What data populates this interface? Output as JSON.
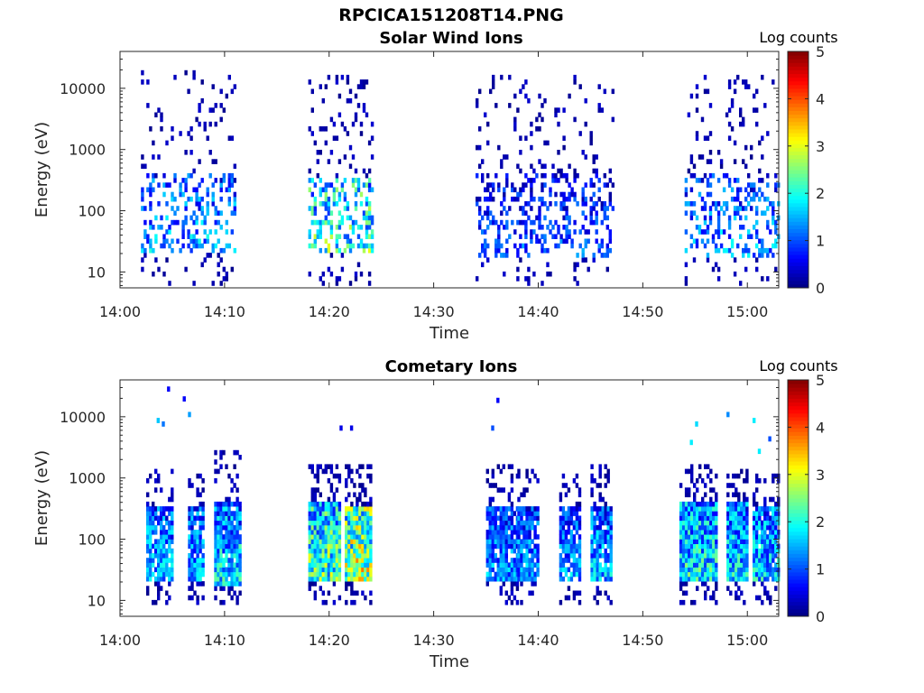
{
  "figure": {
    "title": "RPCICA151208T14.PNG"
  },
  "colors": {
    "colormap": "jet",
    "background": "#ffffff",
    "axis": "#262626"
  },
  "chart_data": [
    {
      "type": "heatmap",
      "title": "Solar Wind Ions",
      "xlabel": "Time",
      "ylabel": "Energy (eV)",
      "xlim": [
        "14:00",
        "15:03"
      ],
      "ylim": [
        5.5,
        40000
      ],
      "yscale": "log",
      "x_ticks": [
        "14:00",
        "14:10",
        "14:20",
        "14:30",
        "14:40",
        "14:50",
        "15:00"
      ],
      "y_ticks": [
        "10",
        "100",
        "1000",
        "10000"
      ],
      "colorbar": {
        "label": "Log counts",
        "range": [
          0,
          5
        ],
        "ticks": [
          "0",
          "1",
          "2",
          "3",
          "4",
          "5"
        ]
      },
      "seed": 11,
      "bursts": [
        {
          "start": "14:02",
          "end": "14:11",
          "emin": 6,
          "emax": 18000,
          "density": 0.16,
          "core": [
            20,
            400
          ],
          "peak": 2.1
        },
        {
          "start": "14:18",
          "end": "14:24",
          "emin": 6,
          "emax": 15000,
          "density": 0.22,
          "core": [
            20,
            300
          ],
          "peak": 3.1
        },
        {
          "start": "14:34",
          "end": "14:47",
          "emin": 6,
          "emax": 16000,
          "density": 0.17,
          "core": [
            15,
            400
          ],
          "peak": 1.6
        },
        {
          "start": "14:54",
          "end": "15:03",
          "emin": 6,
          "emax": 16000,
          "density": 0.16,
          "core": [
            15,
            400
          ],
          "peak": 2.1
        }
      ]
    },
    {
      "type": "heatmap",
      "title": "Cometary Ions",
      "xlabel": "Time",
      "ylabel": "Energy (eV)",
      "xlim": [
        "14:00",
        "15:03"
      ],
      "ylim": [
        5.5,
        40000
      ],
      "yscale": "log",
      "x_ticks": [
        "14:00",
        "14:10",
        "14:20",
        "14:30",
        "14:40",
        "14:50",
        "15:00"
      ],
      "y_ticks": [
        "10",
        "100",
        "1000",
        "10000"
      ],
      "colorbar": {
        "label": "Log counts",
        "range": [
          0,
          5
        ],
        "ticks": [
          "0",
          "1",
          "2",
          "3",
          "4",
          "5"
        ]
      },
      "seed": 37,
      "bursts": [
        {
          "start": "14:02.5",
          "end": "14:05",
          "emin": 8,
          "emax": 1200,
          "density": 0.45,
          "core": [
            20,
            300
          ],
          "peak": 2.2
        },
        {
          "start": "14:06.5",
          "end": "14:08",
          "emin": 8,
          "emax": 1000,
          "density": 0.45,
          "core": [
            20,
            300
          ],
          "peak": 2.2
        },
        {
          "start": "14:09",
          "end": "14:11.5",
          "emin": 8,
          "emax": 2500,
          "density": 0.5,
          "core": [
            15,
            400
          ],
          "peak": 2.6
        },
        {
          "start": "14:18",
          "end": "14:21",
          "emin": 8,
          "emax": 1500,
          "density": 0.65,
          "core": [
            20,
            400
          ],
          "peak": 3.2
        },
        {
          "start": "14:21.5",
          "end": "14:24",
          "emin": 8,
          "emax": 1500,
          "density": 0.65,
          "core": [
            20,
            300
          ],
          "peak": 3.9
        },
        {
          "start": "14:35",
          "end": "14:38",
          "emin": 8,
          "emax": 1500,
          "density": 0.45,
          "core": [
            20,
            300
          ],
          "peak": 2.0
        },
        {
          "start": "14:38",
          "end": "14:40",
          "emin": 8,
          "emax": 1200,
          "density": 0.45,
          "core": [
            20,
            300
          ],
          "peak": 2.0
        },
        {
          "start": "14:42",
          "end": "14:44",
          "emin": 8,
          "emax": 1000,
          "density": 0.45,
          "core": [
            20,
            300
          ],
          "peak": 2.0
        },
        {
          "start": "14:45",
          "end": "14:47",
          "emin": 8,
          "emax": 1500,
          "density": 0.45,
          "core": [
            20,
            300
          ],
          "peak": 2.2
        },
        {
          "start": "14:53.5",
          "end": "14:57",
          "emin": 8,
          "emax": 1500,
          "density": 0.6,
          "core": [
            20,
            400
          ],
          "peak": 2.7
        },
        {
          "start": "14:58",
          "end": "15:00",
          "emin": 8,
          "emax": 1200,
          "density": 0.55,
          "core": [
            20,
            400
          ],
          "peak": 2.5
        },
        {
          "start": "15:00.5",
          "end": "15:03",
          "emin": 8,
          "emax": 1000,
          "density": 0.5,
          "core": [
            20,
            300
          ],
          "peak": 2.4
        }
      ],
      "sparse_points": [
        [
          "14:03.5",
          8000,
          1.6
        ],
        [
          "14:04",
          7000,
          1.2
        ],
        [
          "14:04.5",
          26000,
          0.6
        ],
        [
          "14:06",
          18000,
          0.6
        ],
        [
          "14:06.5",
          10000,
          1.4
        ],
        [
          "14:36",
          17000,
          0.6
        ],
        [
          "14:35.5",
          6000,
          1.0
        ],
        [
          "14:55",
          7000,
          1.7
        ],
        [
          "14:54.5",
          3500,
          1.8
        ],
        [
          "14:58",
          10000,
          1.3
        ],
        [
          "15:00.5",
          8000,
          1.8
        ],
        [
          "15:01",
          2500,
          1.8
        ],
        [
          "15:02",
          4000,
          1.0
        ],
        [
          "14:21",
          6000,
          0.5
        ],
        [
          "14:22",
          6000,
          0.5
        ]
      ]
    }
  ]
}
